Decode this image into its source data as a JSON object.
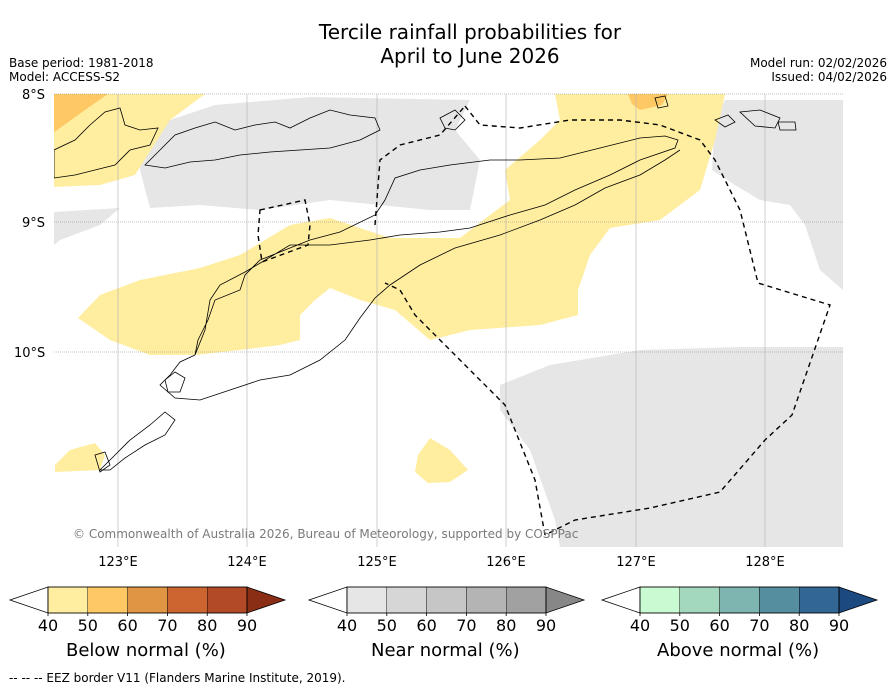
{
  "title_line1": "Tercile rainfall probabilities for",
  "title_line2": "April to June 2026",
  "base_period": "Base period: 1981-2018",
  "model": "Model: ACCESS-S2",
  "model_run": "Model run: 02/02/2026",
  "issued": "Issued: 04/02/2026",
  "lat_labels": [
    "8°S",
    "9°S",
    "10°S"
  ],
  "lon_labels": [
    "123°E",
    "124°E",
    "125°E",
    "126°E",
    "127°E",
    "128°E"
  ],
  "copyright": "© Commonwealth of Australia 2026, Bureau of Meteorology, supported by COSPPac",
  "legend": {
    "below": {
      "title": "Below normal (%)",
      "ticks": [
        "40",
        "50",
        "60",
        "70",
        "80",
        "90"
      ],
      "colors": [
        "#ffffff",
        "#ffeda0",
        "#fec965",
        "#e09545",
        "#cd6531",
        "#b24a27",
        "#8a2e15"
      ]
    },
    "near": {
      "title": "Near normal (%)",
      "ticks": [
        "40",
        "50",
        "60",
        "70",
        "80",
        "90"
      ],
      "colors": [
        "#ffffff",
        "#e6e6e6",
        "#d6d6d6",
        "#c6c6c6",
        "#b4b4b4",
        "#a1a1a1",
        "#878787"
      ]
    },
    "above": {
      "title": "Above normal (%)",
      "ticks": [
        "40",
        "50",
        "60",
        "70",
        "80",
        "90"
      ],
      "colors": [
        "#ffffff",
        "#c9fad1",
        "#a3d8bf",
        "#7fb5b1",
        "#558e9e",
        "#326695",
        "#1c4a80"
      ]
    }
  },
  "footnote": "--  --  -- EEZ border V11 (Flanders Marine Institute, 2019)."
}
